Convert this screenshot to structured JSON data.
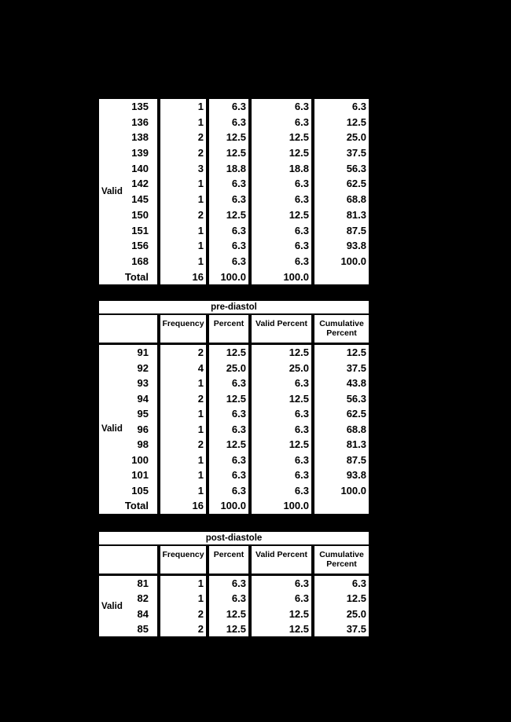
{
  "page": {
    "background_color": "#000000",
    "cell_color": "#ffffff",
    "text_color": "#000000"
  },
  "tables": [
    {
      "name": "frequency-table-continuation",
      "title": "",
      "stub_label": "Valid",
      "rows": [
        [
          "135",
          "1",
          "6.3",
          "6.3",
          "6.3"
        ],
        [
          "136",
          "1",
          "6.3",
          "6.3",
          "12.5"
        ],
        [
          "138",
          "2",
          "12.5",
          "12.5",
          "25.0"
        ],
        [
          "139",
          "2",
          "12.5",
          "12.5",
          "37.5"
        ],
        [
          "140",
          "3",
          "18.8",
          "18.8",
          "56.3"
        ],
        [
          "142",
          "1",
          "6.3",
          "6.3",
          "62.5"
        ],
        [
          "145",
          "1",
          "6.3",
          "6.3",
          "68.8"
        ],
        [
          "150",
          "2",
          "12.5",
          "12.5",
          "81.3"
        ],
        [
          "151",
          "1",
          "6.3",
          "6.3",
          "87.5"
        ],
        [
          "156",
          "1",
          "6.3",
          "6.3",
          "93.8"
        ],
        [
          "168",
          "1",
          "6.3",
          "6.3",
          "100.0"
        ],
        [
          "Total",
          "16",
          "100.0",
          "100.0",
          ""
        ]
      ]
    },
    {
      "name": "pre-diastol-frequency-table",
      "title": "pre-diastol",
      "stub_label": "Valid",
      "headers": [
        "Frequency",
        "Percent",
        "Valid Percent",
        "Cumulative Percent"
      ],
      "rows": [
        [
          "91",
          "2",
          "12.5",
          "12.5",
          "12.5"
        ],
        [
          "92",
          "4",
          "25.0",
          "25.0",
          "37.5"
        ],
        [
          "93",
          "1",
          "6.3",
          "6.3",
          "43.8"
        ],
        [
          "94",
          "2",
          "12.5",
          "12.5",
          "56.3"
        ],
        [
          "95",
          "1",
          "6.3",
          "6.3",
          "62.5"
        ],
        [
          "96",
          "1",
          "6.3",
          "6.3",
          "68.8"
        ],
        [
          "98",
          "2",
          "12.5",
          "12.5",
          "81.3"
        ],
        [
          "100",
          "1",
          "6.3",
          "6.3",
          "87.5"
        ],
        [
          "101",
          "1",
          "6.3",
          "6.3",
          "93.8"
        ],
        [
          "105",
          "1",
          "6.3",
          "6.3",
          "100.0"
        ],
        [
          "Total",
          "16",
          "100.0",
          "100.0",
          ""
        ]
      ]
    },
    {
      "name": "post-diastole-frequency-table",
      "title": "post-diastole",
      "stub_label": "Valid",
      "headers": [
        "Frequency",
        "Percent",
        "Valid Percent",
        "Cumulative Percent"
      ],
      "rows": [
        [
          "81",
          "1",
          "6.3",
          "6.3",
          "6.3"
        ],
        [
          "82",
          "1",
          "6.3",
          "6.3",
          "12.5"
        ],
        [
          "84",
          "2",
          "12.5",
          "12.5",
          "25.0"
        ],
        [
          "85",
          "2",
          "12.5",
          "12.5",
          "37.5"
        ]
      ]
    }
  ]
}
